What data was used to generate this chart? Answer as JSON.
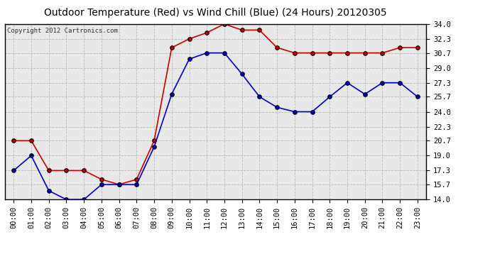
{
  "title": "Outdoor Temperature (Red) vs Wind Chill (Blue) (24 Hours) 20120305",
  "copyright": "Copyright 2012 Cartronics.com",
  "x_labels": [
    "00:00",
    "01:00",
    "02:00",
    "03:00",
    "04:00",
    "05:00",
    "06:00",
    "07:00",
    "08:00",
    "09:00",
    "10:00",
    "11:00",
    "12:00",
    "13:00",
    "14:00",
    "15:00",
    "16:00",
    "17:00",
    "18:00",
    "19:00",
    "20:00",
    "21:00",
    "22:00",
    "23:00"
  ],
  "red_data": [
    20.7,
    20.7,
    17.3,
    17.3,
    17.3,
    16.3,
    15.7,
    16.3,
    20.7,
    31.3,
    32.3,
    33.0,
    34.0,
    33.3,
    33.3,
    31.3,
    30.7,
    30.7,
    30.7,
    30.7,
    30.7,
    30.7,
    31.3,
    31.3
  ],
  "blue_data": [
    17.3,
    19.0,
    15.0,
    14.0,
    14.0,
    15.7,
    15.7,
    15.7,
    20.0,
    26.0,
    30.0,
    30.7,
    30.7,
    28.3,
    25.7,
    24.5,
    24.0,
    24.0,
    25.7,
    27.3,
    26.0,
    27.3,
    27.3,
    25.7
  ],
  "ylim": [
    14.0,
    34.0
  ],
  "yticks": [
    14.0,
    15.7,
    17.3,
    19.0,
    20.7,
    22.3,
    24.0,
    25.7,
    27.3,
    29.0,
    30.7,
    32.3,
    34.0
  ],
  "red_color": "#cc0000",
  "blue_color": "#0000cc",
  "bg_color": "#ffffff",
  "plot_bg_color": "#e8e8e8",
  "grid_color": "#bbbbbb",
  "title_fontsize": 10,
  "tick_fontsize": 7.5,
  "copyright_fontsize": 6.5,
  "marker_color": "#000000",
  "marker_size": 4
}
